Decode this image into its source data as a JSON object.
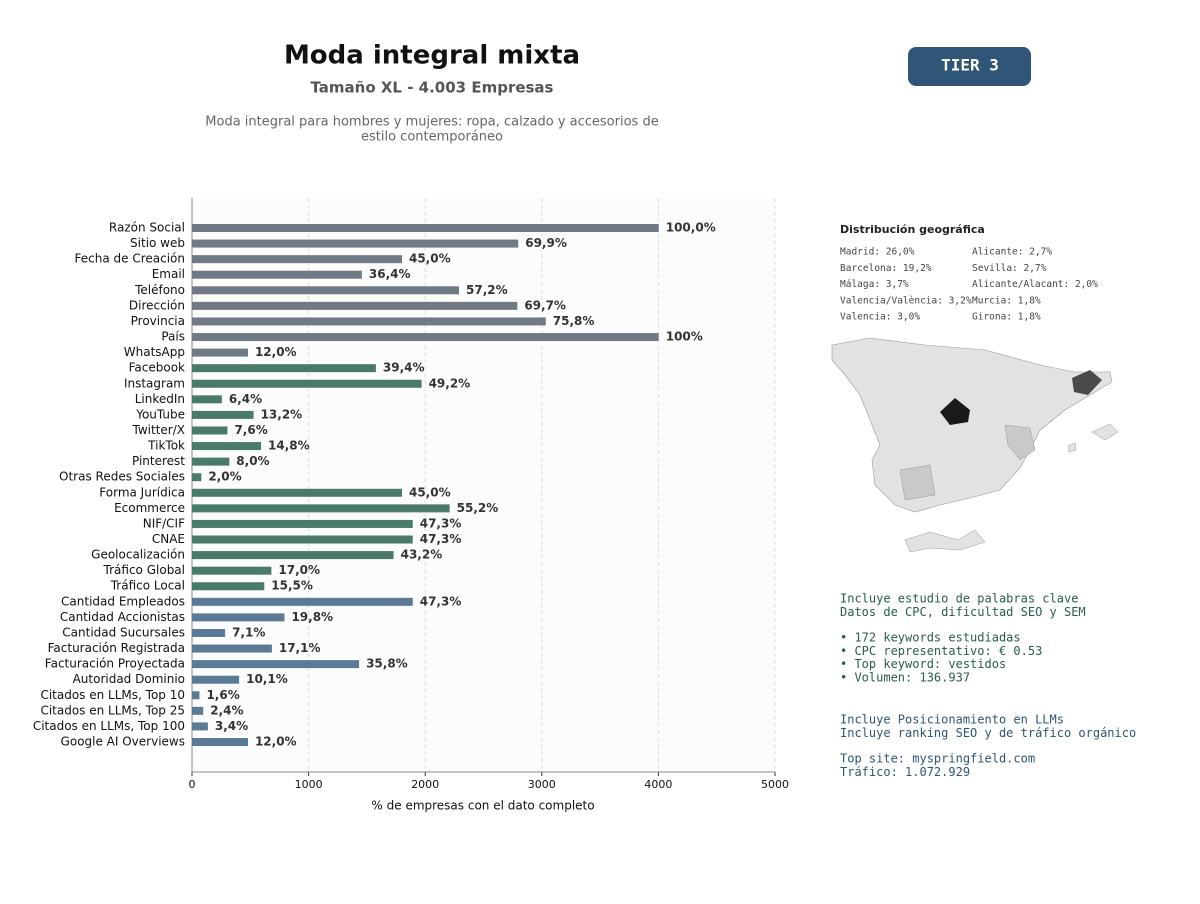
{
  "header": {
    "title": "Moda integral mixta",
    "subtitle": "Tamaño XL - 4.003 Empresas",
    "description": [
      "Moda integral para hombres y mujeres: ropa, calzado y accesorios de",
      "estilo contemporáneo"
    ],
    "tier": "TIER 3"
  },
  "chart_data": {
    "type": "hbar",
    "categories": [
      "Razón Social",
      "Sitio web",
      "Fecha de Creación",
      "Email",
      "Teléfono",
      "Dirección",
      "Provincia",
      "País",
      "WhatsApp",
      "Facebook",
      "Instagram",
      "LinkedIn",
      "YouTube",
      "Twitter/X",
      "TikTok",
      "Pinterest",
      "Otras Redes Sociales",
      "Forma Jurídica",
      "Ecommerce",
      "NIF/CIF",
      "CNAE",
      "Geolocalización",
      "Tráfico Global",
      "Tráfico Local",
      "Cantidad Empleados",
      "Cantidad Accionistas",
      "Cantidad Sucursales",
      "Facturación Registrada",
      "Facturación Proyectada",
      "Autoridad Dominio",
      "Citados en LLMs, Top 10",
      "Citados en LLMs, Top 25",
      "Citados en LLMs, Top 100",
      "Google AI Overviews"
    ],
    "values": [
      4003,
      2798,
      1801,
      1457,
      2290,
      2790,
      3034,
      4003,
      480,
      1577,
      1969,
      256,
      528,
      304,
      592,
      320,
      80,
      1801,
      2210,
      1893,
      1893,
      1729,
      681,
      620,
      1893,
      793,
      284,
      685,
      1433,
      404,
      64,
      96,
      136,
      480
    ],
    "value_labels": [
      "100,0%",
      "69,9%",
      "45,0%",
      "36,4%",
      "57,2%",
      "69,7%",
      "75,8%",
      "100%",
      "12,0%",
      "39,4%",
      "49,2%",
      "6,4%",
      "13,2%",
      "7,6%",
      "14,8%",
      "8,0%",
      "2,0%",
      "45,0%",
      "55,2%",
      "47,3%",
      "47,3%",
      "43,2%",
      "17,0%",
      "15,5%",
      "47,3%",
      "19,8%",
      "7,1%",
      "17,1%",
      "35,8%",
      "10,1%",
      "1,6%",
      "2,4%",
      "3,4%",
      "12,0%"
    ],
    "colors": [
      "#6f7a86",
      "#6f7a86",
      "#6f7a86",
      "#6f7a86",
      "#6f7a86",
      "#6f7a86",
      "#6f7a86",
      "#6f7a86",
      "#6f7a86",
      "#4a7a68",
      "#4a7a68",
      "#4a7a68",
      "#4a7a68",
      "#4a7a68",
      "#4a7a68",
      "#4a7a68",
      "#4a7a68",
      "#4a7a68",
      "#4a7a68",
      "#4a7a68",
      "#4a7a68",
      "#4a7a68",
      "#4a7a68",
      "#4a7a68",
      "#5a7a96",
      "#5a7a96",
      "#5a7a96",
      "#5a7a96",
      "#5a7a96",
      "#5a7a96",
      "#5a7a96",
      "#5a7a96",
      "#5a7a96",
      "#5a7a96"
    ],
    "xlim": [
      0,
      5000
    ],
    "xticks": [
      0,
      1000,
      2000,
      3000,
      4000,
      5000
    ],
    "xlabel": "% de empresas con el dato completo",
    "grid": true
  },
  "geo": {
    "title": "Distribución geográfica",
    "left": [
      "Madrid: 26,0%",
      "Barcelona: 19,2%",
      "Málaga: 3,7%",
      "Valencia/València: 3,2%",
      "Valencia: 3,0%"
    ],
    "right": [
      "Alicante: 2,7%",
      "Sevilla: 2,7%",
      "Alicante/Alacant: 2,0%",
      "Murcia: 1,8%",
      "Girona: 1,8%"
    ]
  },
  "info": {
    "seo": [
      "Incluye estudio de palabras clave",
      "Datos de CPC, dificultad SEO y SEM"
    ],
    "bullets": [
      "• 172 keywords estudiadas",
      "• CPC representativo: € 0.53",
      "• Top keyword: vestidos",
      "• Volumen: 136.937"
    ],
    "llm": [
      "Incluye Posicionamiento en LLMs",
      "Incluye ranking SEO y de tráfico orgánico"
    ],
    "site": [
      "Top site: myspringfield.com",
      "Tráfico: 1.072.929"
    ]
  }
}
